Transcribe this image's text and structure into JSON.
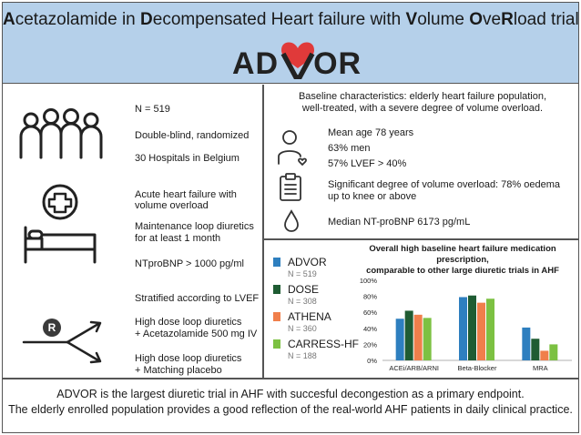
{
  "header": {
    "title_parts": [
      {
        "text": "A",
        "bold": true
      },
      {
        "text": "cetazolamide in ",
        "bold": false
      },
      {
        "text": "D",
        "bold": true
      },
      {
        "text": "ecompensated Heart failure with ",
        "bold": false
      },
      {
        "text": "V",
        "bold": true
      },
      {
        "text": "olume ",
        "bold": false
      },
      {
        "text": "O",
        "bold": true
      },
      {
        "text": "ve",
        "bold": false
      },
      {
        "text": "R",
        "bold": true
      },
      {
        "text": "load trial",
        "bold": false
      }
    ],
    "logo_left": "AD",
    "logo_right": "OR",
    "logo_heart_color": "#e03a3a"
  },
  "left": {
    "population": {
      "n": "N = 519",
      "design": "Double-blind, randomized",
      "sites": "30 Hospitals in Belgium"
    },
    "inclusion": {
      "line1": "Acute heart failure with",
      "line2": "volume overload",
      "line3": "Maintenance loop diuretics",
      "line4": "for at least 1 month",
      "line5": "NTproBNP > 1000 pg/ml"
    },
    "randomization": {
      "stratified": "Stratified according to LVEF",
      "r_label": "R",
      "arm1_line1": "High dose loop diuretics",
      "arm1_line2": "+ Acetazolamide 500 mg IV",
      "arm2_line1": "High dose loop diuretics",
      "arm2_line2": "+ Matching placebo"
    }
  },
  "baseline": {
    "heading_line1": "Baseline characteristics: elderly heart failure population,",
    "heading_line2": "well-treated, with a severe degree of volume overload.",
    "age": "Mean age 78 years",
    "men": "63% men",
    "lvef": "57% LVEF > 40%",
    "overload_line1": "Significant degree of volume overload: 78% oedema",
    "overload_line2": "up to knee or above",
    "bnp": "Median NT-proBNP 6173 pg/mL"
  },
  "legend": [
    {
      "name": "ADVOR",
      "n": "N = 519",
      "color": "#2e7fbf"
    },
    {
      "name": "DOSE",
      "n": "N = 308",
      "color": "#1f5c33"
    },
    {
      "name": "ATHENA",
      "n": "N = 360",
      "color": "#f07f4b"
    },
    {
      "name": "CARRESS-HF",
      "n": "N = 188",
      "color": "#7cc142"
    }
  ],
  "chart_data": {
    "type": "bar",
    "title_line1": "Overall high baseline heart failure medication prescription,",
    "title_line2": "comparable to other large diuretic trials in AHF",
    "categories": [
      "ACEi/ARB/ARNI",
      "Beta-Blocker",
      "MRA"
    ],
    "series": [
      {
        "name": "ADVOR",
        "values": [
          52,
          79,
          41
        ]
      },
      {
        "name": "DOSE",
        "values": [
          62,
          81,
          27
        ]
      },
      {
        "name": "ATHENA",
        "values": [
          57,
          72,
          12
        ]
      },
      {
        "name": "CARRESS-HF",
        "values": [
          53,
          77,
          20
        ]
      }
    ],
    "yticks": [
      "0%",
      "20%",
      "40%",
      "60%",
      "80%",
      "100%"
    ],
    "ylim": [
      0,
      100
    ]
  },
  "footer": {
    "line1": "ADVOR is the largest diuretic trial in AHF with succesful decongestion as a primary endpoint.",
    "line2": "The elderly enrolled population provides a good reflection of the real-world AHF patients in daily clinical practice."
  }
}
